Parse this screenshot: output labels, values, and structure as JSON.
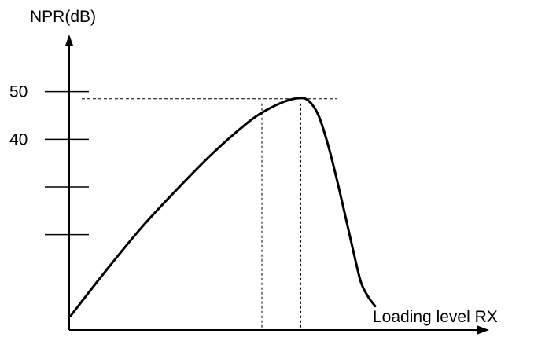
{
  "chart_data": {
    "type": "line",
    "ylabel": "NPR(dB)",
    "xlabel": "Loading level  RX",
    "y_ticks": [
      {
        "value": 50,
        "label": "50"
      },
      {
        "value": 40,
        "label": "40"
      },
      {
        "value": 30,
        "label": ""
      },
      {
        "value": 20,
        "label": ""
      }
    ],
    "ylim": [
      0,
      60
    ],
    "xlim": [
      0,
      100
    ],
    "series": [
      {
        "x": [
          0,
          10,
          20,
          30,
          40,
          50,
          55,
          60,
          64,
          67,
          70,
          73,
          76,
          80,
          82,
          84,
          86
        ],
        "y": [
          3,
          12.5,
          21.5,
          29.5,
          37,
          43.5,
          46,
          47.8,
          48.6,
          48.2,
          45,
          38,
          29,
          16,
          10,
          7,
          5
        ]
      }
    ],
    "peak": {
      "x": 63,
      "y": 48.5
    },
    "half_width_markers_x": [
      54,
      65
    ]
  }
}
